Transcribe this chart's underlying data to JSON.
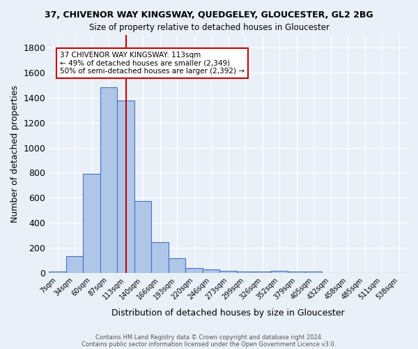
{
  "title1": "37, CHIVENOR WAY KINGSWAY, QUEDGELEY, GLOUCESTER, GL2 2BG",
  "title2": "Size of property relative to detached houses in Gloucester",
  "xlabel": "Distribution of detached houses by size in Gloucester",
  "ylabel": "Number of detached properties",
  "annotation_line1": "37 CHIVENOR WAY KINGSWAY: 113sqm",
  "annotation_line2": "← 49% of detached houses are smaller (2,349)",
  "annotation_line3": "50% of semi-detached houses are larger (2,392) →",
  "footer1": "Contains HM Land Registry data © Crown copyright and database right 2024.",
  "footer2": "Contains public sector information licensed under the Open Government Licence v3.0.",
  "bin_labels": [
    "7sqm",
    "34sqm",
    "60sqm",
    "87sqm",
    "113sqm",
    "140sqm",
    "166sqm",
    "193sqm",
    "220sqm",
    "246sqm",
    "273sqm",
    "299sqm",
    "326sqm",
    "352sqm",
    "379sqm",
    "405sqm",
    "432sqm",
    "458sqm",
    "485sqm",
    "511sqm",
    "538sqm"
  ],
  "bar_values": [
    10,
    135,
    790,
    1480,
    1375,
    575,
    245,
    115,
    40,
    28,
    18,
    13,
    10,
    18,
    10,
    10,
    0,
    0,
    0,
    0,
    0
  ],
  "bar_color": "#aec6e8",
  "bar_edge_color": "#4472c4",
  "property_line_x": 4,
  "property_line_color": "#cc0000",
  "ylim": [
    0,
    1900
  ],
  "background_color": "#eaf0f8",
  "grid_color": "#ffffff",
  "annotation_box_color": "#ffffff",
  "annotation_box_edge": "#cc0000"
}
